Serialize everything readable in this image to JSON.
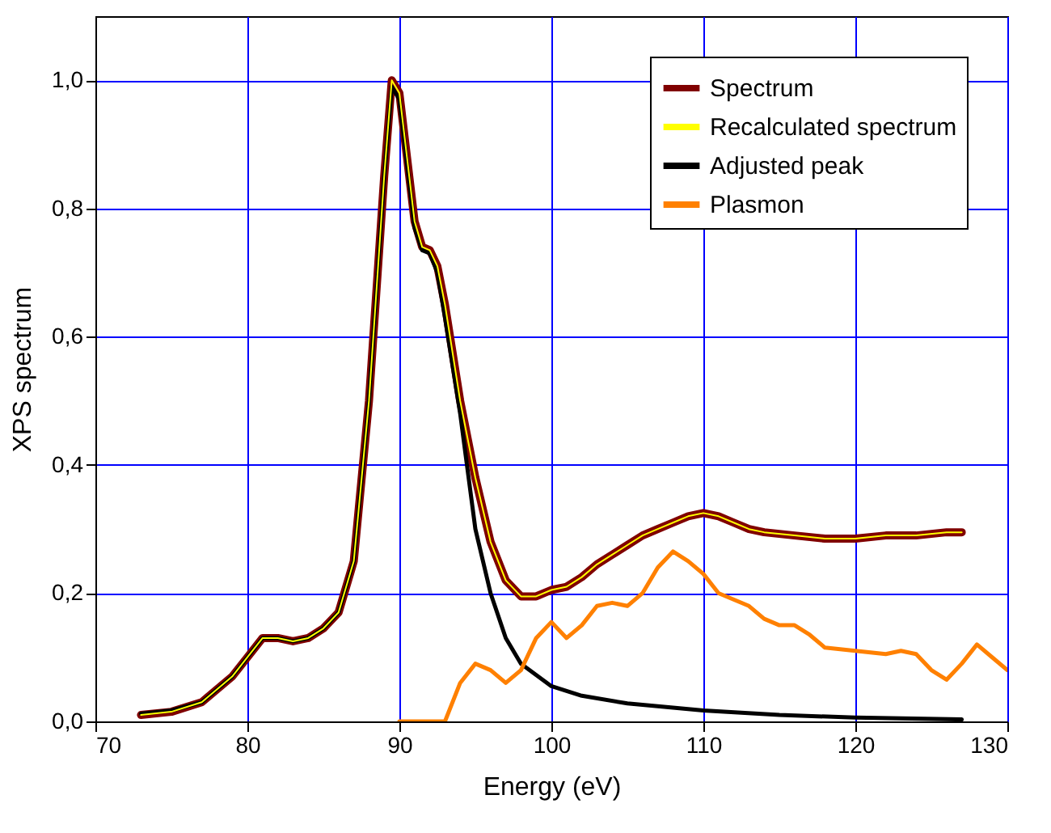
{
  "chart_data": {
    "type": "line",
    "xlabel": "Energy (eV)",
    "ylabel": "XPS spectrum",
    "xlim": [
      70,
      130
    ],
    "xticks": [
      70,
      80,
      90,
      100,
      110,
      120,
      130
    ],
    "ylim": [
      0,
      1.1
    ],
    "yticks": [
      {
        "value": 0,
        "label": "0,0"
      },
      {
        "value": 0.2,
        "label": "0,2"
      },
      {
        "value": 0.4,
        "label": "0,4"
      },
      {
        "value": 0.6,
        "label": "0,6"
      },
      {
        "value": 0.8,
        "label": "0,8"
      },
      {
        "value": 1,
        "label": "1,0"
      }
    ],
    "grid": true,
    "legend": "top right",
    "line_style": "solid",
    "marker": "none",
    "series": [
      {
        "name": "Spectrum",
        "color": "#800000",
        "x": [
          73,
          75,
          77,
          79,
          80,
          81,
          82,
          83,
          84,
          85,
          86,
          87,
          88,
          89,
          89.5,
          90,
          90.5,
          91,
          91.5,
          92,
          92.5,
          93,
          94,
          95,
          96,
          97,
          98,
          99,
          100,
          101,
          102,
          103,
          104,
          105,
          106,
          107,
          108,
          109,
          110,
          111,
          112,
          113,
          114,
          116,
          118,
          120,
          122,
          124,
          126,
          127
        ],
        "values": [
          0.01,
          0.015,
          0.03,
          0.07,
          0.1,
          0.13,
          0.13,
          0.125,
          0.13,
          0.145,
          0.17,
          0.25,
          0.5,
          0.85,
          1.0,
          0.98,
          0.88,
          0.78,
          0.74,
          0.735,
          0.71,
          0.65,
          0.5,
          0.38,
          0.28,
          0.22,
          0.195,
          0.195,
          0.205,
          0.21,
          0.225,
          0.245,
          0.26,
          0.275,
          0.29,
          0.3,
          0.31,
          0.32,
          0.325,
          0.32,
          0.31,
          0.3,
          0.295,
          0.29,
          0.285,
          0.285,
          0.29,
          0.29,
          0.295,
          0.295
        ]
      },
      {
        "name": "Recalculated spectrum",
        "color": "#ffff00",
        "x": [
          73,
          75,
          77,
          79,
          80,
          81,
          82,
          83,
          84,
          85,
          86,
          87,
          88,
          89,
          89.5,
          90,
          90.5,
          91,
          91.5,
          92,
          92.5,
          93,
          94,
          95,
          96,
          97,
          98,
          99,
          100,
          101,
          102,
          103,
          104,
          105,
          106,
          107,
          108,
          109,
          110,
          111,
          112,
          113,
          114,
          116,
          118,
          120,
          122,
          124,
          126,
          127
        ],
        "values": [
          0.01,
          0.015,
          0.03,
          0.07,
          0.1,
          0.13,
          0.13,
          0.125,
          0.13,
          0.145,
          0.17,
          0.25,
          0.5,
          0.85,
          1.0,
          0.98,
          0.88,
          0.78,
          0.74,
          0.735,
          0.71,
          0.65,
          0.5,
          0.38,
          0.28,
          0.22,
          0.195,
          0.195,
          0.205,
          0.21,
          0.225,
          0.245,
          0.26,
          0.275,
          0.29,
          0.3,
          0.31,
          0.32,
          0.325,
          0.32,
          0.31,
          0.3,
          0.295,
          0.29,
          0.285,
          0.285,
          0.29,
          0.29,
          0.295,
          0.295
        ]
      },
      {
        "name": "Adjusted peak",
        "color": "#000000",
        "x": [
          73,
          75,
          77,
          79,
          80,
          81,
          82,
          83,
          84,
          85,
          86,
          87,
          88,
          89,
          89.5,
          90,
          90.5,
          91,
          91.5,
          92,
          92.5,
          93,
          94,
          95,
          96,
          97,
          98,
          100,
          102,
          105,
          110,
          115,
          120,
          127
        ],
        "values": [
          0.012,
          0.017,
          0.03,
          0.07,
          0.1,
          0.13,
          0.13,
          0.125,
          0.13,
          0.145,
          0.17,
          0.25,
          0.5,
          0.85,
          0.99,
          0.97,
          0.87,
          0.77,
          0.735,
          0.73,
          0.7,
          0.63,
          0.48,
          0.3,
          0.2,
          0.13,
          0.09,
          0.055,
          0.04,
          0.028,
          0.017,
          0.01,
          0.006,
          0.003
        ]
      },
      {
        "name": "Plasmon",
        "color": "#ff8000",
        "x": [
          90,
          93,
          94,
          95,
          96,
          97,
          98,
          99,
          100,
          101,
          102,
          103,
          104,
          105,
          106,
          107,
          108,
          109,
          110,
          111,
          113,
          114,
          115,
          116,
          117,
          118,
          120,
          122,
          123,
          124,
          125,
          126,
          127,
          128,
          129,
          130
        ],
        "values": [
          0,
          0,
          0.06,
          0.09,
          0.08,
          0.06,
          0.08,
          0.13,
          0.155,
          0.13,
          0.15,
          0.18,
          0.185,
          0.18,
          0.2,
          0.24,
          0.265,
          0.25,
          0.23,
          0.2,
          0.18,
          0.16,
          0.15,
          0.15,
          0.135,
          0.115,
          0.11,
          0.105,
          0.11,
          0.105,
          0.08,
          0.065,
          0.09,
          0.12,
          0.1,
          0.08
        ]
      }
    ]
  }
}
